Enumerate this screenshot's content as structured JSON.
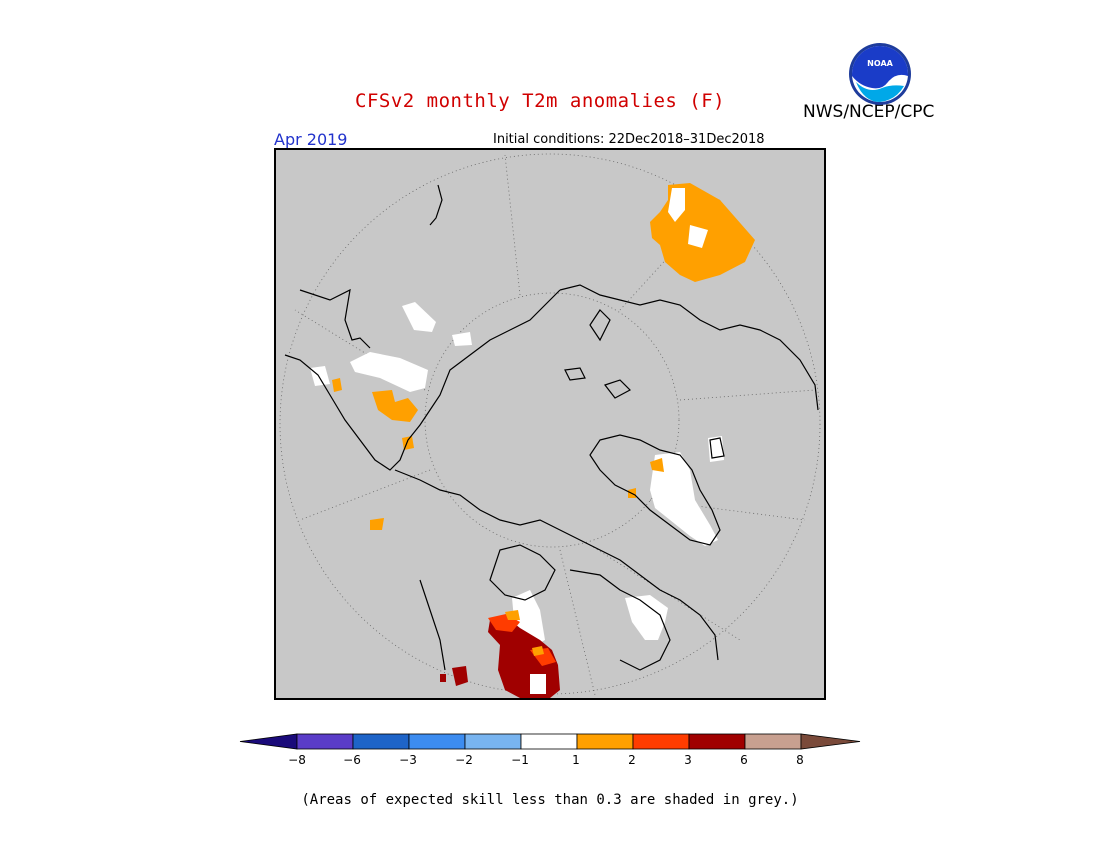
{
  "header": {
    "title": "CFSv2 monthly T2m anomalies (F)",
    "agency": "NWS/NCEP/CPC",
    "month": "Apr 2019",
    "initial_conditions": "Initial conditions: 22Dec2018–31Dec2018"
  },
  "logo": {
    "icon": "noaa-logo-icon",
    "text": "NOAA"
  },
  "map": {
    "projection": "north polar stereographic",
    "background_color": "#c8c8c8",
    "border_color": "#000000",
    "grid": "dotted latitude/longitude circles",
    "variable": "2m temperature anomaly",
    "units": "F"
  },
  "colorbar": {
    "ticks": [
      "−8",
      "−6",
      "−3",
      "−2",
      "−1",
      "1",
      "2",
      "3",
      "6",
      "8"
    ],
    "colors": {
      "below_min": "#1a0a7a",
      "neg8_neg6": "#5a3cc8",
      "neg6_neg3": "#1e64c8",
      "neg3_neg2": "#3c8cf0",
      "neg2_neg1": "#78b4f0",
      "neg1_1": "#ffffff",
      "1_2": "#ffa000",
      "2_3": "#ff3c00",
      "3_6": "#a00000",
      "6_8": "#c8a090",
      "above_max": "#7a4a3a"
    }
  },
  "note": "(Areas of expected skill less than 0.3 are shaded in grey.)"
}
